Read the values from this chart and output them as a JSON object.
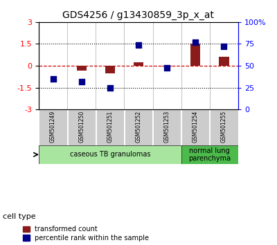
{
  "title": "GDS4256 / g13430859_3p_x_at",
  "samples": [
    "GSM501249",
    "GSM501250",
    "GSM501251",
    "GSM501252",
    "GSM501253",
    "GSM501254",
    "GSM501255"
  ],
  "transformed_count": [
    0.0,
    -0.35,
    -0.5,
    0.25,
    -0.05,
    1.5,
    0.6
  ],
  "percentile_rank_scaled": [
    -0.9,
    -1.1,
    -1.5,
    1.45,
    -0.15,
    1.6,
    1.35
  ],
  "ylim": [
    -3,
    3
  ],
  "yticks": [
    -3,
    -1.5,
    0,
    1.5,
    3
  ],
  "right_ytick_vals": [
    0,
    25,
    50,
    75,
    100
  ],
  "bar_color": "#8B1A1A",
  "scatter_color": "#00008B",
  "hline_color": "#CC0000",
  "dotted_color": "#000000",
  "cell_type_groups": [
    {
      "label": "caseous TB granulomas",
      "indices": [
        0,
        1,
        2,
        3,
        4
      ],
      "color": "#A8E6A0"
    },
    {
      "label": "normal lung\nparenchyma",
      "indices": [
        5,
        6
      ],
      "color": "#4CBB4C"
    }
  ],
  "legend_labels": [
    "transformed count",
    "percentile rank within the sample"
  ],
  "cell_type_label": "cell type",
  "bg_color": "#FFFFFF"
}
